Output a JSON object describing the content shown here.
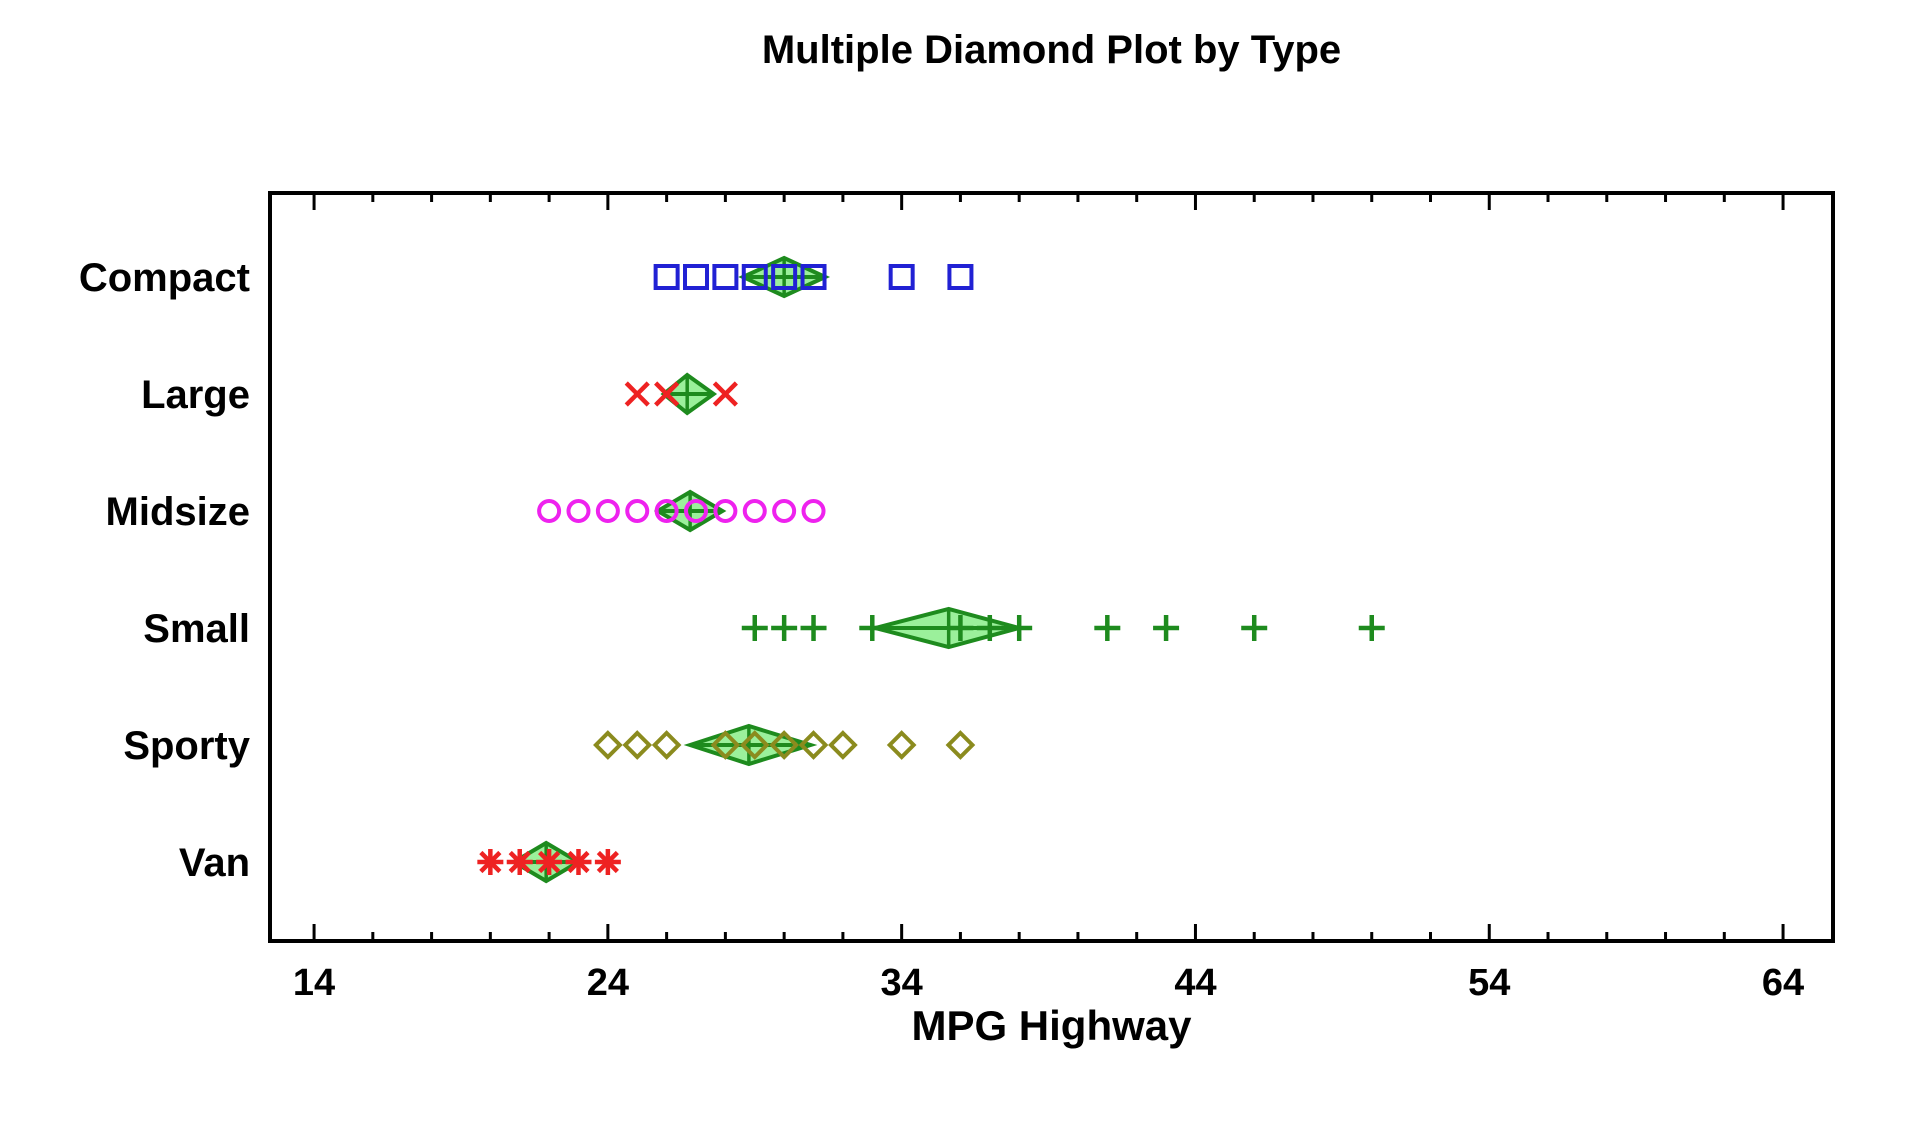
{
  "page": {
    "background": "#ffffff"
  },
  "chart_data": {
    "type": "scatter",
    "title": "Multiple Diamond Plot by Type",
    "xlabel": "MPG Highway",
    "ylabel": "",
    "grid": false,
    "legend_position": "none",
    "axis_color": "#000000",
    "text_color": "#000000",
    "x_axis": {
      "min": 12.5,
      "max": 65.7,
      "major_ticks": [
        14,
        24,
        34,
        44,
        54,
        64
      ],
      "minor_tick_start": 14,
      "minor_tick_end": 64,
      "minor_tick_step": 2
    },
    "categories": [
      "Compact",
      "Large",
      "Midsize",
      "Small",
      "Sporty",
      "Van"
    ],
    "mean_diamond_style": {
      "fill": "#90ee90",
      "stroke": "#1e8b1e"
    },
    "series": [
      {
        "name": "Compact",
        "marker": "square",
        "color": "#2121d4",
        "values": [
          26,
          27,
          28,
          29,
          30,
          31,
          34,
          36
        ],
        "diamond": {
          "mean": 30.0,
          "lower": 28.6,
          "upper": 31.4
        }
      },
      {
        "name": "Large",
        "marker": "x",
        "color": "#ee2222",
        "values": [
          25,
          26,
          28
        ],
        "diamond": {
          "mean": 26.7,
          "lower": 25.9,
          "upper": 27.6
        }
      },
      {
        "name": "Midsize",
        "marker": "circle",
        "color": "#ee22ee",
        "values": [
          22,
          23,
          24,
          25,
          26,
          27,
          28,
          29,
          30,
          31
        ],
        "diamond": {
          "mean": 26.8,
          "lower": 25.7,
          "upper": 27.9
        }
      },
      {
        "name": "Small",
        "marker": "plus",
        "color": "#1e8b1e",
        "values": [
          29,
          30,
          31,
          33,
          36,
          37,
          38,
          41,
          43,
          46,
          50
        ],
        "diamond": {
          "mean": 35.6,
          "lower": 33.1,
          "upper": 38.0
        }
      },
      {
        "name": "Sporty",
        "marker": "diamond",
        "color": "#8b8b1e",
        "values": [
          24,
          25,
          26,
          28,
          29,
          30,
          31,
          32,
          34,
          36
        ],
        "diamond": {
          "mean": 28.8,
          "lower": 26.8,
          "upper": 30.9
        }
      },
      {
        "name": "Van",
        "marker": "asterisk",
        "color": "#ee2222",
        "values": [
          20,
          21,
          22,
          23,
          24
        ],
        "diamond": {
          "mean": 21.9,
          "lower": 20.8,
          "upper": 23.0
        }
      }
    ]
  }
}
